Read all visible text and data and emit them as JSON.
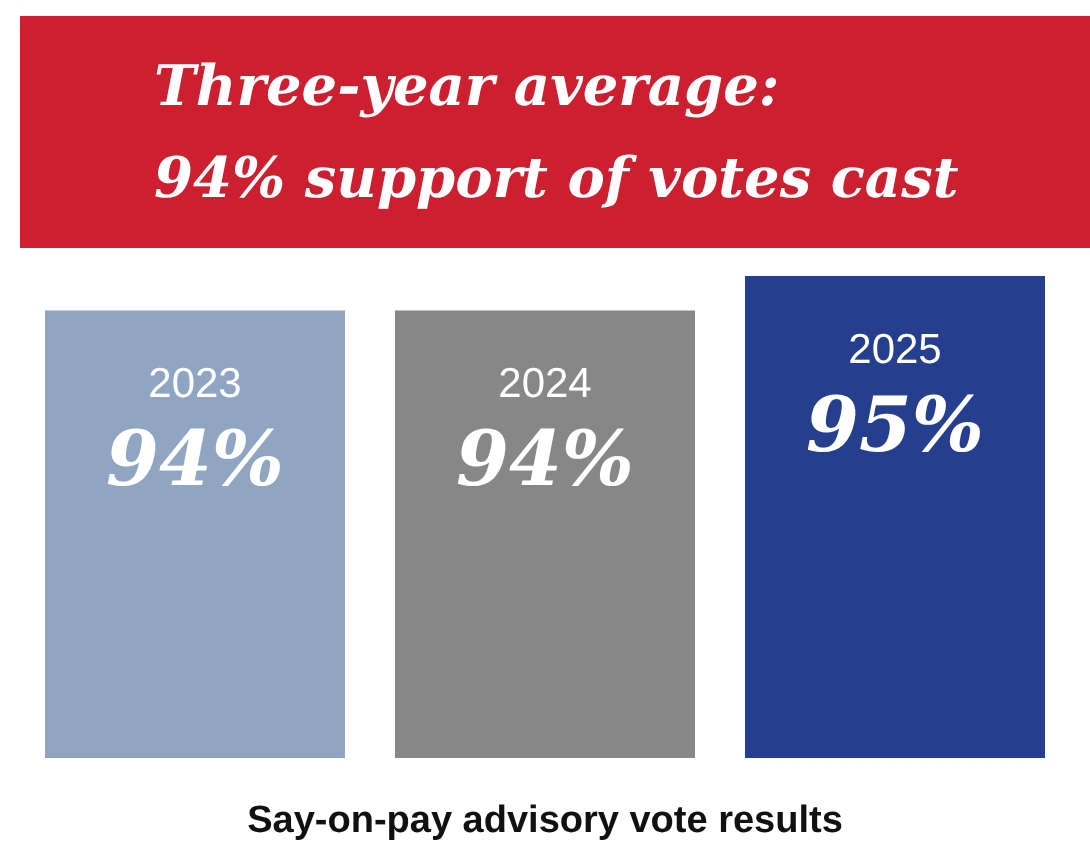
{
  "chart_data": {
    "type": "bar",
    "title": "Three-year average:\n94% support of votes cast",
    "xlabel": "Say-on-pay advisory vote results",
    "categories": [
      "2023",
      "2024",
      "2025"
    ],
    "values": [
      94,
      94,
      95
    ],
    "value_labels": [
      "94%",
      "94%",
      "95%"
    ],
    "colors": [
      "#8fa5c2",
      "#878787",
      "#253f8e"
    ],
    "ylim": [
      81,
      95
    ]
  }
}
